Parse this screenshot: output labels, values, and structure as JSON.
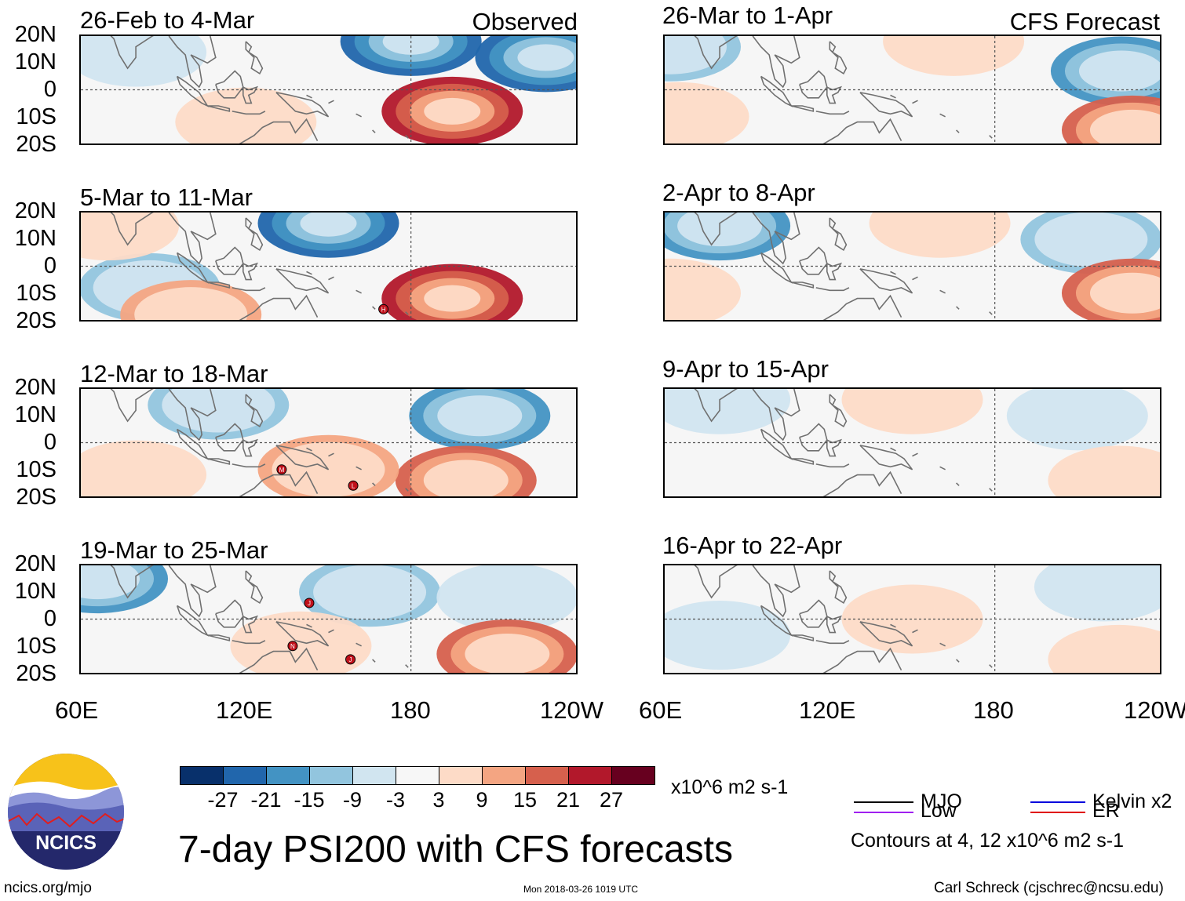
{
  "chart_data": {
    "type": "heatmap",
    "title": "7-day PSI200 with CFS forecasts",
    "variable": "PSI200",
    "units": "x10^6 m2 s-1",
    "columns": [
      {
        "label": "Observed"
      },
      {
        "label": "CFS Forecast"
      }
    ],
    "lat_ticks": [
      "20N",
      "10N",
      "0",
      "10S",
      "20S"
    ],
    "lon_ticks": [
      "60E",
      "120E",
      "180",
      "120W"
    ],
    "lon_range": [
      60,
      240
    ],
    "lat_range": [
      -20,
      20
    ],
    "color_scale": {
      "levels": [
        "-27",
        "-21",
        "-15",
        "-9",
        "-3",
        "3",
        "9",
        "15",
        "21",
        "27"
      ],
      "colors": [
        "#08306b",
        "#2166ac",
        "#4393c3",
        "#92c5de",
        "#d1e5f0",
        "#f7f7f7",
        "#fddbc7",
        "#f4a582",
        "#d6604d",
        "#b2182b",
        "#67001f"
      ]
    },
    "panels": [
      {
        "period": "26-Feb to 4-Mar",
        "column": 0,
        "row": 0,
        "anomalies": [
          {
            "lon": 180,
            "lat": 18,
            "value": -24
          },
          {
            "lon": 229,
            "lat": 12,
            "value": -22
          },
          {
            "lon": 195,
            "lat": -8,
            "value": 22
          },
          {
            "lon": 120,
            "lat": -12,
            "value": 5
          },
          {
            "lon": 80,
            "lat": 14,
            "value": -6
          }
        ],
        "storms": []
      },
      {
        "period": "5-Mar to 11-Mar",
        "column": 0,
        "row": 1,
        "anomalies": [
          {
            "lon": 150,
            "lat": 16,
            "value": -22
          },
          {
            "lon": 85,
            "lat": -8,
            "value": -12
          },
          {
            "lon": 195,
            "lat": -12,
            "value": 22
          },
          {
            "lon": 70,
            "lat": 15,
            "value": 8
          },
          {
            "lon": 100,
            "lat": -18,
            "value": 12
          }
        ],
        "storms": [
          {
            "label": "H",
            "lon": 170,
            "lat": -16
          }
        ]
      },
      {
        "period": "12-Mar to 18-Mar",
        "column": 0,
        "row": 2,
        "anomalies": [
          {
            "lon": 205,
            "lat": 10,
            "value": -16
          },
          {
            "lon": 110,
            "lat": 14,
            "value": -10
          },
          {
            "lon": 200,
            "lat": -14,
            "value": 16
          },
          {
            "lon": 150,
            "lat": -10,
            "value": 10
          },
          {
            "lon": 80,
            "lat": -12,
            "value": 6
          }
        ],
        "storms": [
          {
            "label": "M",
            "lon": 133,
            "lat": -10
          },
          {
            "label": "L",
            "lon": 159,
            "lat": -16
          }
        ]
      },
      {
        "period": "19-Mar to 25-Mar",
        "column": 0,
        "row": 3,
        "anomalies": [
          {
            "lon": 66,
            "lat": 15,
            "value": -16
          },
          {
            "lon": 165,
            "lat": 10,
            "value": -10
          },
          {
            "lon": 215,
            "lat": 8,
            "value": -8
          },
          {
            "lon": 215,
            "lat": -13,
            "value": 18
          },
          {
            "lon": 140,
            "lat": -10,
            "value": 8
          }
        ],
        "storms": [
          {
            "label": "J",
            "lon": 143,
            "lat": 6
          },
          {
            "label": "N",
            "lon": 137,
            "lat": -10
          },
          {
            "label": "J",
            "lon": 158,
            "lat": -15
          }
        ]
      },
      {
        "period": "26-Mar to 1-Apr",
        "column": 1,
        "row": 0,
        "anomalies": [
          {
            "lon": 226,
            "lat": 7,
            "value": -18
          },
          {
            "lon": 62,
            "lat": 16,
            "value": -12
          },
          {
            "lon": 165,
            "lat": 18,
            "value": 8
          },
          {
            "lon": 230,
            "lat": -15,
            "value": 16
          },
          {
            "lon": 65,
            "lat": -10,
            "value": 6
          }
        ],
        "storms": []
      },
      {
        "period": "2-Apr to 8-Apr",
        "column": 1,
        "row": 1,
        "anomalies": [
          {
            "lon": 80,
            "lat": 15,
            "value": -18
          },
          {
            "lon": 215,
            "lat": 10,
            "value": -10
          },
          {
            "lon": 160,
            "lat": 16,
            "value": 5
          },
          {
            "lon": 230,
            "lat": -10,
            "value": 18
          },
          {
            "lon": 62,
            "lat": -10,
            "value": 6
          }
        ],
        "storms": []
      },
      {
        "period": "9-Apr to 15-Apr",
        "column": 1,
        "row": 2,
        "anomalies": [
          {
            "lon": 80,
            "lat": 16,
            "value": -6
          },
          {
            "lon": 210,
            "lat": 10,
            "value": -6
          },
          {
            "lon": 225,
            "lat": -14,
            "value": 8
          },
          {
            "lon": 150,
            "lat": 16,
            "value": 4
          }
        ],
        "storms": []
      },
      {
        "period": "16-Apr to 22-Apr",
        "column": 1,
        "row": 3,
        "anomalies": [
          {
            "lon": 220,
            "lat": 12,
            "value": -8
          },
          {
            "lon": 80,
            "lat": -6,
            "value": -5
          },
          {
            "lon": 150,
            "lat": 0,
            "value": 4
          },
          {
            "lon": 225,
            "lat": -15,
            "value": 8
          }
        ],
        "storms": []
      }
    ],
    "legend": {
      "entries": [
        {
          "name": "MJO",
          "color": "#000000"
        },
        {
          "name": "Kelvin x2",
          "color": "#0000dd"
        },
        {
          "name": "Low",
          "color": "#a020f0"
        },
        {
          "name": "ER",
          "color": "#e00000"
        }
      ],
      "note": "Contours at 4, 12 x10^6 m2 s-1"
    }
  },
  "logo": {
    "text": "NCICS"
  },
  "footer": {
    "url": "ncics.org/mjo",
    "timestamp": "Mon 2018-03-26 1019 UTC",
    "author": "Carl Schreck (cjschrec@ncsu.edu)"
  }
}
